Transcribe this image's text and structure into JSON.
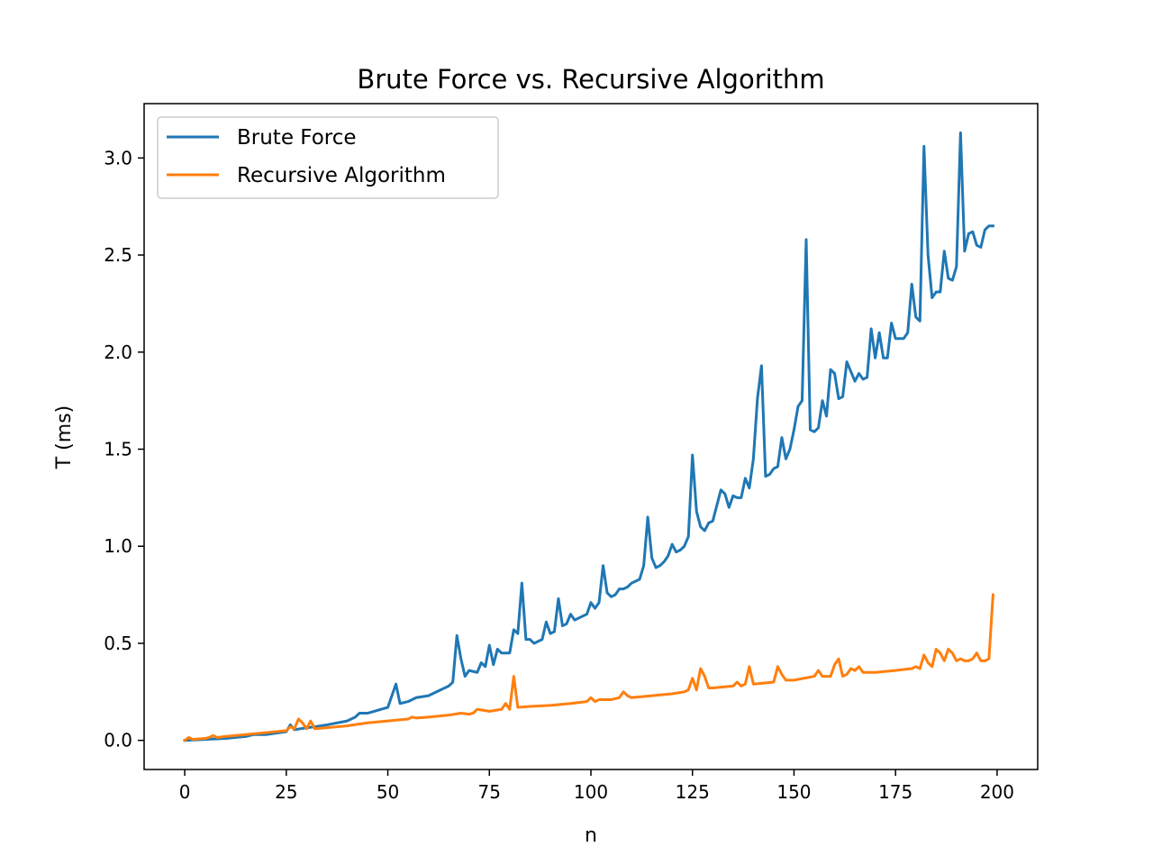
{
  "chart_data": {
    "type": "line",
    "title": "Brute Force vs. Recursive Algorithm",
    "xlabel": "n",
    "ylabel": "T (ms)",
    "xlim": [
      -10,
      210
    ],
    "ylim": [
      -0.15,
      3.28
    ],
    "xticks": [
      0,
      25,
      50,
      75,
      100,
      125,
      150,
      175,
      200
    ],
    "xtick_labels": [
      "0",
      "25",
      "50",
      "75",
      "100",
      "125",
      "150",
      "175",
      "200"
    ],
    "yticks": [
      0.0,
      0.5,
      1.0,
      1.5,
      2.0,
      2.5,
      3.0
    ],
    "ytick_labels": [
      "0.0",
      "0.5",
      "1.0",
      "1.5",
      "2.0",
      "2.5",
      "3.0"
    ],
    "grid": false,
    "legend_position": "top-left",
    "series": [
      {
        "name": "Brute Force",
        "color": "#1f77b4",
        "x": [
          0,
          5,
          10,
          15,
          17,
          20,
          25,
          26,
          27,
          30,
          32,
          35,
          40,
          42,
          43,
          45,
          50,
          52,
          53,
          55,
          57,
          60,
          63,
          65,
          66,
          67,
          68,
          69,
          70,
          72,
          73,
          74,
          75,
          76,
          77,
          78,
          79,
          80,
          81,
          82,
          83,
          84,
          85,
          86,
          88,
          89,
          90,
          91,
          92,
          93,
          94,
          95,
          96,
          97,
          99,
          100,
          101,
          102,
          103,
          104,
          105,
          106,
          107,
          108,
          109,
          110,
          112,
          113,
          114,
          115,
          116,
          117,
          118,
          119,
          120,
          121,
          122,
          123,
          124,
          125,
          126,
          127,
          128,
          129,
          130,
          131,
          132,
          133,
          134,
          135,
          136,
          137,
          138,
          139,
          140,
          141,
          142,
          143,
          144,
          145,
          146,
          147,
          148,
          149,
          150,
          151,
          152,
          153,
          154,
          155,
          156,
          157,
          158,
          159,
          160,
          161,
          162,
          163,
          164,
          165,
          166,
          167,
          168,
          169,
          170,
          171,
          172,
          173,
          174,
          175,
          176,
          177,
          178,
          179,
          180,
          181,
          182,
          183,
          184,
          185,
          186,
          187,
          188,
          189,
          190,
          191,
          192,
          193,
          194,
          195,
          196,
          197,
          198,
          199
        ],
        "y": [
          0.0,
          0.005,
          0.01,
          0.02,
          0.03,
          0.03,
          0.045,
          0.08,
          0.055,
          0.065,
          0.07,
          0.08,
          0.1,
          0.12,
          0.14,
          0.14,
          0.17,
          0.29,
          0.19,
          0.2,
          0.22,
          0.23,
          0.26,
          0.28,
          0.3,
          0.54,
          0.42,
          0.33,
          0.36,
          0.35,
          0.4,
          0.38,
          0.49,
          0.39,
          0.47,
          0.45,
          0.45,
          0.45,
          0.57,
          0.55,
          0.81,
          0.52,
          0.52,
          0.5,
          0.52,
          0.61,
          0.55,
          0.56,
          0.73,
          0.59,
          0.6,
          0.65,
          0.62,
          0.63,
          0.65,
          0.71,
          0.68,
          0.71,
          0.9,
          0.76,
          0.74,
          0.75,
          0.78,
          0.78,
          0.79,
          0.81,
          0.83,
          0.9,
          1.15,
          0.94,
          0.89,
          0.9,
          0.92,
          0.95,
          1.01,
          0.97,
          0.98,
          1.0,
          1.05,
          1.47,
          1.18,
          1.1,
          1.08,
          1.12,
          1.13,
          1.21,
          1.29,
          1.27,
          1.2,
          1.26,
          1.25,
          1.25,
          1.35,
          1.3,
          1.45,
          1.76,
          1.93,
          1.36,
          1.37,
          1.4,
          1.41,
          1.56,
          1.45,
          1.5,
          1.6,
          1.72,
          1.75,
          2.58,
          1.6,
          1.59,
          1.61,
          1.75,
          1.67,
          1.91,
          1.89,
          1.76,
          1.77,
          1.95,
          1.9,
          1.85,
          1.89,
          1.86,
          1.87,
          2.12,
          1.97,
          2.1,
          1.97,
          1.97,
          2.15,
          2.07,
          2.07,
          2.07,
          2.1,
          2.35,
          2.18,
          2.16,
          3.06,
          2.5,
          2.28,
          2.31,
          2.31,
          2.52,
          2.38,
          2.37,
          2.44,
          3.13,
          2.52,
          2.61,
          2.62,
          2.55,
          2.54,
          2.63,
          2.65,
          2.65
        ]
      },
      {
        "name": "Recursive Algorithm",
        "color": "#ff7f0e",
        "x": [
          0,
          1,
          2,
          5,
          6,
          7,
          8,
          10,
          15,
          20,
          25,
          26,
          27,
          28,
          29,
          30,
          31,
          32,
          35,
          40,
          45,
          50,
          55,
          56,
          57,
          60,
          65,
          68,
          70,
          71,
          72,
          75,
          78,
          79,
          80,
          81,
          82,
          85,
          90,
          95,
          99,
          100,
          101,
          102,
          105,
          107,
          108,
          109,
          110,
          115,
          120,
          123,
          124,
          125,
          126,
          127,
          128,
          129,
          130,
          135,
          136,
          137,
          138,
          139,
          140,
          145,
          146,
          147,
          148,
          150,
          155,
          156,
          157,
          158,
          159,
          160,
          161,
          162,
          163,
          164,
          165,
          166,
          167,
          170,
          175,
          179,
          180,
          181,
          182,
          183,
          184,
          185,
          186,
          187,
          188,
          189,
          190,
          191,
          192,
          193,
          194,
          195,
          196,
          197,
          198,
          199
        ],
        "y": [
          0.0,
          0.015,
          0.005,
          0.01,
          0.015,
          0.025,
          0.015,
          0.02,
          0.03,
          0.04,
          0.05,
          0.07,
          0.06,
          0.11,
          0.09,
          0.06,
          0.1,
          0.06,
          0.065,
          0.075,
          0.09,
          0.1,
          0.11,
          0.12,
          0.115,
          0.12,
          0.13,
          0.14,
          0.135,
          0.14,
          0.16,
          0.15,
          0.16,
          0.19,
          0.16,
          0.33,
          0.17,
          0.175,
          0.18,
          0.19,
          0.2,
          0.22,
          0.2,
          0.21,
          0.21,
          0.22,
          0.25,
          0.23,
          0.22,
          0.23,
          0.24,
          0.25,
          0.26,
          0.32,
          0.26,
          0.37,
          0.33,
          0.27,
          0.27,
          0.28,
          0.3,
          0.28,
          0.29,
          0.38,
          0.29,
          0.3,
          0.38,
          0.34,
          0.31,
          0.31,
          0.33,
          0.36,
          0.33,
          0.33,
          0.33,
          0.39,
          0.42,
          0.33,
          0.34,
          0.37,
          0.36,
          0.38,
          0.35,
          0.35,
          0.36,
          0.37,
          0.38,
          0.37,
          0.44,
          0.4,
          0.38,
          0.47,
          0.45,
          0.41,
          0.47,
          0.45,
          0.41,
          0.42,
          0.41,
          0.41,
          0.42,
          0.45,
          0.41,
          0.41,
          0.42,
          0.75
        ]
      }
    ]
  }
}
